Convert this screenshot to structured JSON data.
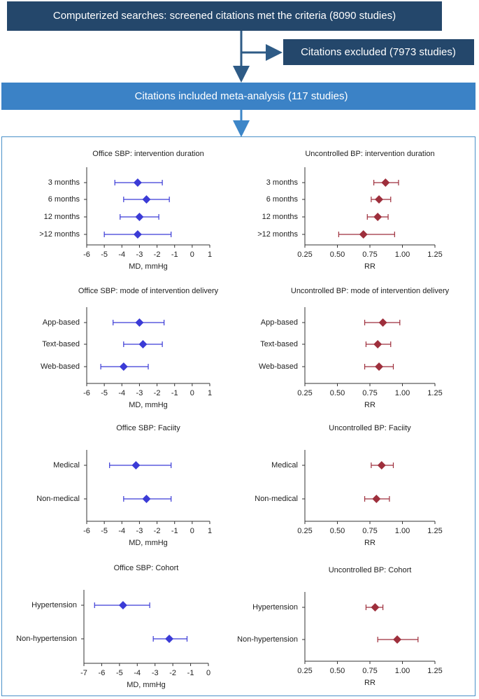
{
  "flowchart": {
    "top": "Computerized searches: screened citations met the criteria (8090 studies)",
    "excluded": "Citations excluded (7973 studies)",
    "included": "Citations included meta-analysis (117 studies)"
  },
  "chart_data": [
    {
      "type": "forest",
      "title": "Office SBP: intervention duration",
      "xlabel": "MD, mmHg",
      "color": "#3b3bd6",
      "categories": [
        "3 months",
        "6 months",
        "12 months",
        ">12 months"
      ],
      "values": [
        -3.1,
        -2.6,
        -3.0,
        -3.1
      ],
      "lower": [
        -4.4,
        -3.9,
        -4.1,
        -5.0
      ],
      "upper": [
        -1.7,
        -1.3,
        -1.9,
        -1.2
      ],
      "xlim": [
        -6,
        1
      ],
      "xticks": [
        -6,
        -5,
        -4,
        -3,
        -2,
        -1,
        0,
        1
      ]
    },
    {
      "type": "forest",
      "title": "Uncontrolled BP: intervention duration",
      "xlabel": "RR",
      "color": "#9e2f3c",
      "categories": [
        "3 months",
        "6 months",
        "12 months",
        ">12 months"
      ],
      "values": [
        0.87,
        0.82,
        0.81,
        0.7
      ],
      "lower": [
        0.78,
        0.76,
        0.73,
        0.51
      ],
      "upper": [
        0.97,
        0.91,
        0.89,
        0.94
      ],
      "xlim": [
        0.25,
        1.25
      ],
      "xticks": [
        0.25,
        {
          "value": 0.5,
          "label": "0.50"
        },
        0.75,
        {
          "value": 1,
          "label": "1.00"
        },
        1.25
      ]
    },
    {
      "type": "forest",
      "title": "Office SBP: mode of intervention delivery",
      "xlabel": "MD, mmHg",
      "color": "#3b3bd6",
      "categories": [
        "App-based",
        "Text-based",
        "Web-based"
      ],
      "values": [
        -3.0,
        -2.8,
        -3.9
      ],
      "lower": [
        -4.5,
        -3.9,
        -5.2
      ],
      "upper": [
        -1.6,
        -1.7,
        -2.5
      ],
      "xlim": [
        -6,
        1
      ],
      "xticks": [
        -6,
        -5,
        -4,
        -3,
        -2,
        -1,
        0,
        1
      ]
    },
    {
      "type": "forest",
      "title": "Uncontrolled BP: mode of intervention delivery",
      "xlabel": "RR",
      "color": "#9e2f3c",
      "categories": [
        "App-based",
        "Text-based",
        "Web-based"
      ],
      "values": [
        0.85,
        0.81,
        0.82
      ],
      "lower": [
        0.71,
        0.72,
        0.71
      ],
      "upper": [
        0.98,
        0.91,
        0.93
      ],
      "xlim": [
        0.25,
        1.25
      ],
      "xticks": [
        0.25,
        {
          "value": 0.5,
          "label": "0.50"
        },
        0.75,
        {
          "value": 1,
          "label": "1.00"
        },
        1.25
      ]
    },
    {
      "type": "forest",
      "title": "Office SBP: Faciity",
      "xlabel": "MD, mmHg",
      "color": "#3b3bd6",
      "categories": [
        "Medical",
        "Non-medical"
      ],
      "values": [
        -3.2,
        -2.6
      ],
      "lower": [
        -4.7,
        -3.9
      ],
      "upper": [
        -1.2,
        -1.2
      ],
      "xlim": [
        -6,
        1
      ],
      "xticks": [
        -6,
        -5,
        -4,
        -3,
        -2,
        -1,
        0,
        1
      ]
    },
    {
      "type": "forest",
      "title": "Uncontrolled BP: Faciity",
      "xlabel": "RR",
      "color": "#9e2f3c",
      "categories": [
        "Medical",
        "Non-medical"
      ],
      "values": [
        0.84,
        0.8
      ],
      "lower": [
        0.76,
        0.71
      ],
      "upper": [
        0.93,
        0.9
      ],
      "xlim": [
        0.25,
        1.25
      ],
      "xticks": [
        0.25,
        {
          "value": 0.5,
          "label": "0.50"
        },
        0.75,
        {
          "value": 1,
          "label": "1.00"
        },
        1.25
      ]
    },
    {
      "type": "forest",
      "title": "Office SBP: Cohort",
      "xlabel": "MD, mmHg",
      "color": "#3b3bd6",
      "categories": [
        "Hypertension",
        "Non-hypertension"
      ],
      "values": [
        -4.8,
        -2.2
      ],
      "lower": [
        -6.4,
        -3.1
      ],
      "upper": [
        -3.3,
        -1.2
      ],
      "xlim": [
        -7,
        0
      ],
      "xticks": [
        -7,
        -6,
        -5,
        -4,
        -3,
        -2,
        -1,
        0
      ]
    },
    {
      "type": "forest",
      "title": "Uncontrolled BP: Cohort",
      "xlabel": "RR",
      "color": "#9e2f3c",
      "categories": [
        "Hypertension",
        "Non-hypertension"
      ],
      "values": [
        0.79,
        0.96
      ],
      "lower": [
        0.72,
        0.81
      ],
      "upper": [
        0.85,
        1.12
      ],
      "xlim": [
        0.25,
        1.25
      ],
      "xticks": [
        0.25,
        {
          "value": 0.5,
          "label": "0.50"
        },
        0.75,
        {
          "value": 1,
          "label": "1.00"
        },
        1.25
      ]
    }
  ]
}
